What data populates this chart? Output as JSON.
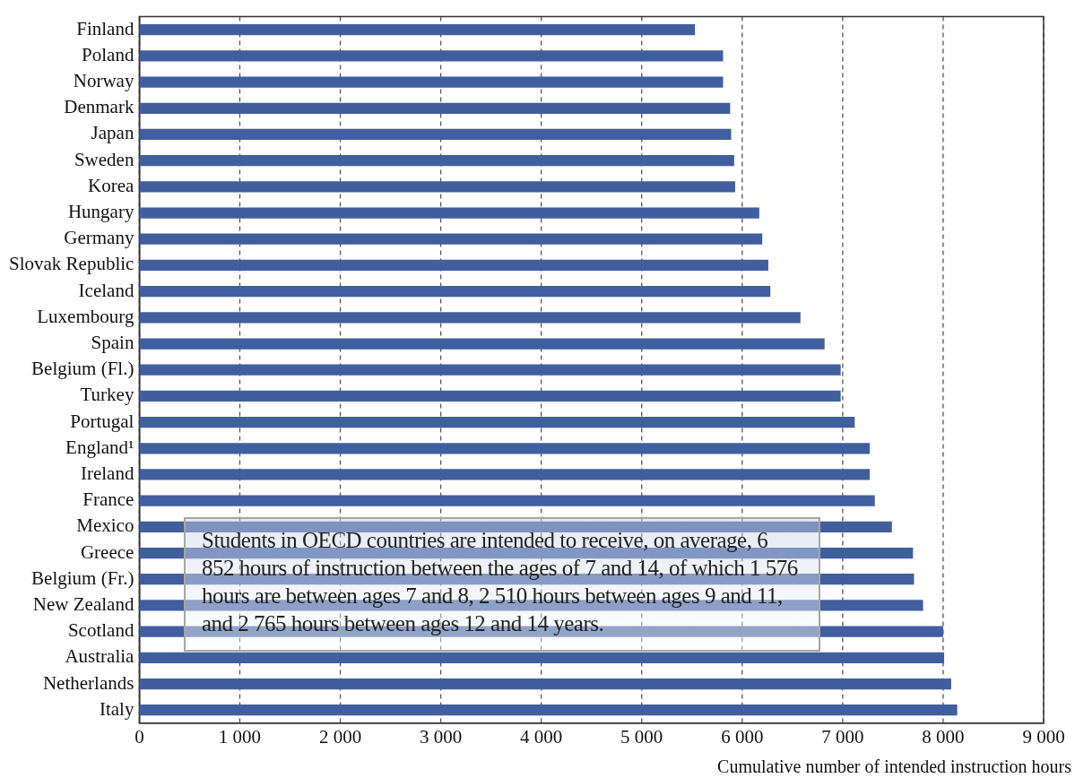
{
  "chart_data": {
    "type": "bar",
    "orientation": "horizontal",
    "xlabel": "Cumulative number of intended instruction hours",
    "categories": [
      "Finland",
      "Poland",
      "Norway",
      "Denmark",
      "Japan",
      "Sweden",
      "Korea",
      "Hungary",
      "Germany",
      "Slovak Republic",
      "Iceland",
      "Luxembourg",
      "Spain",
      "Belgium (Fl.)",
      "Turkey",
      "Portugal",
      "England¹",
      "Ireland",
      "France",
      "Mexico",
      "Greece",
      "Belgium (Fr.)",
      "New Zealand",
      "Scotland",
      "Australia",
      "Netherlands",
      "Italy"
    ],
    "values": [
      5530,
      5810,
      5810,
      5880,
      5890,
      5920,
      5930,
      6170,
      6200,
      6260,
      6280,
      6580,
      6820,
      6980,
      6980,
      7120,
      7270,
      7270,
      7320,
      7490,
      7700,
      7710,
      7800,
      8000,
      8010,
      8080,
      8140
    ],
    "color": "#415e9f",
    "xlim": [
      0,
      9000
    ],
    "xticks": [
      0,
      {
        "value": 1000,
        "label": "1 000"
      },
      {
        "value": 2000,
        "label": "2 000"
      },
      {
        "value": 3000,
        "label": "3 000"
      },
      {
        "value": 4000,
        "label": "4 000"
      },
      {
        "value": 5000,
        "label": "5 000"
      },
      {
        "value": 6000,
        "label": "6 000"
      },
      {
        "value": 7000,
        "label": "7 000"
      },
      {
        "value": 8000,
        "label": "8 000"
      },
      {
        "value": 9000,
        "label": "9 000"
      }
    ],
    "grid": "x",
    "legend": false,
    "annotations": [
      "Students in OECD countries are intended to receive, on average, 6 852 hours of instruction between the ages of 7 and 14, of which 1 576 hours are between ages 7 and 8, 2 510 hours between ages 9 and 11, and 2 765 hours between ages 12 and 14 years."
    ]
  }
}
